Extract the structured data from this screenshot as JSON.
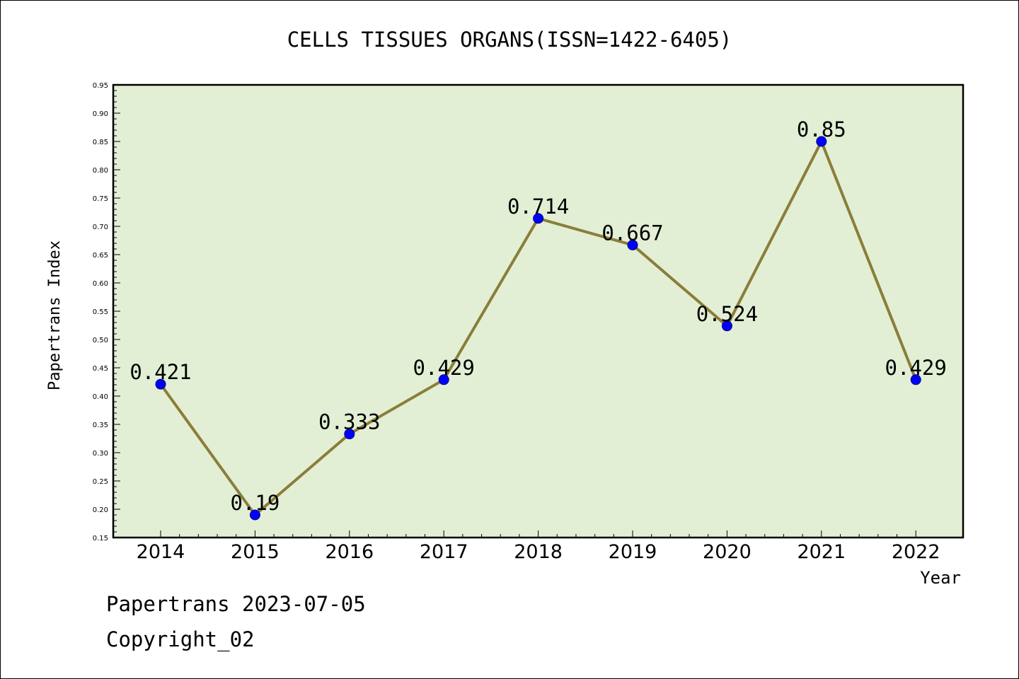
{
  "chart_data": {
    "type": "line",
    "title": "CELLS TISSUES ORGANS(ISSN=1422-6405)",
    "xlabel": "Year",
    "ylabel": "Papertrans Index",
    "categories": [
      "2014",
      "2015",
      "2016",
      "2017",
      "2018",
      "2019",
      "2020",
      "2021",
      "2022"
    ],
    "values": [
      0.421,
      0.19,
      0.333,
      0.429,
      0.714,
      0.667,
      0.524,
      0.85,
      0.429
    ],
    "data_labels": [
      "0.421",
      "0.19",
      "0.333",
      "0.429",
      "0.714",
      "0.667",
      "0.524",
      "0.85",
      "0.429"
    ],
    "ylim": [
      0.15,
      0.95
    ],
    "yticks": [
      "0.15",
      "0.20",
      "0.25",
      "0.30",
      "0.35",
      "0.40",
      "0.45",
      "0.50",
      "0.55",
      "0.60",
      "0.65",
      "0.70",
      "0.75",
      "0.80",
      "0.85",
      "0.90",
      "0.95"
    ],
    "grid": false,
    "legend": "none",
    "colors": {
      "plot_background": "#e2efd5",
      "line": "#8b7d3a",
      "marker_fill": "#0000ff",
      "marker_stroke": "#000080"
    }
  },
  "footer": {
    "line1": "Papertrans 2023-07-05",
    "line2": "Copyright_02"
  }
}
